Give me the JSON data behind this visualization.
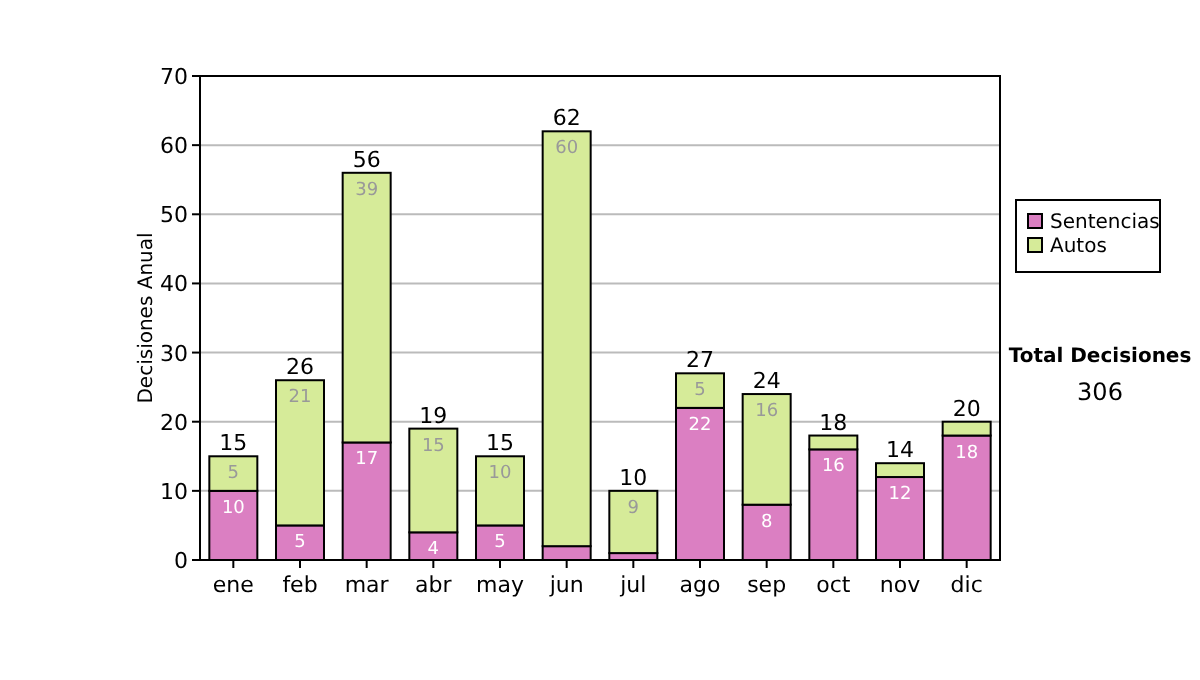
{
  "chart_data": {
    "type": "bar",
    "stacked": true,
    "ylabel": "Decisiones Anual",
    "categories": [
      "ene",
      "feb",
      "mar",
      "abr",
      "may",
      "jun",
      "jul",
      "ago",
      "sep",
      "oct",
      "nov",
      "dic"
    ],
    "series": [
      {
        "name": "Sentencias",
        "color": "#db7fc2",
        "values": [
          10,
          5,
          17,
          4,
          5,
          2,
          1,
          22,
          8,
          16,
          12,
          18
        ],
        "value_labels": [
          "10",
          "5",
          "17",
          "4",
          "5",
          null,
          null,
          "22",
          "8",
          "16",
          "12",
          "18"
        ]
      },
      {
        "name": "Autos",
        "color": "#d6eb99",
        "values": [
          5,
          21,
          39,
          15,
          10,
          60,
          9,
          5,
          16,
          2,
          2,
          2
        ],
        "value_labels": [
          "5",
          "21",
          "39",
          "15",
          "10",
          "60",
          "9",
          "5",
          "16",
          null,
          null,
          null
        ]
      }
    ],
    "totals": [
      "15",
      "26",
      "56",
      "19",
      "15",
      "62",
      "10",
      "27",
      "24",
      "18",
      "14",
      "20"
    ],
    "ylim": [
      0,
      70
    ],
    "yticks": [
      0,
      10,
      20,
      30,
      40,
      50,
      60,
      70
    ],
    "grid": "y",
    "legend": "right",
    "annotations": [
      "Total Decisiones",
      "306"
    ]
  }
}
